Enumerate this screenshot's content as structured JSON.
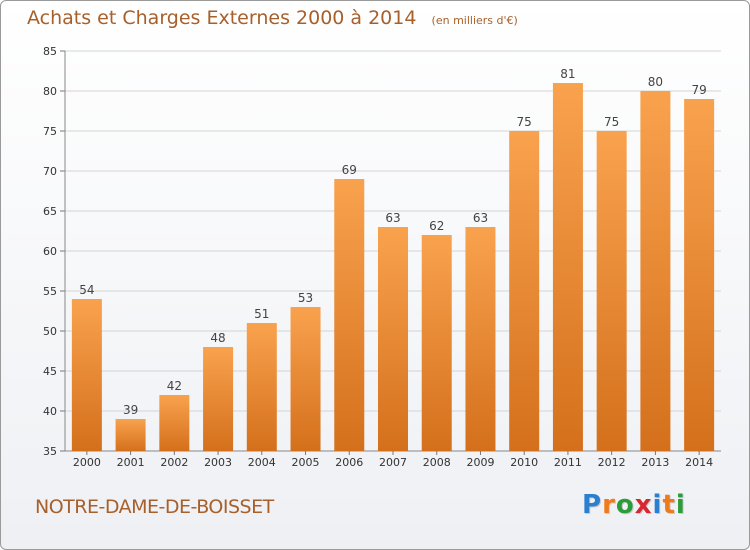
{
  "header": {
    "title": "Achats et Charges Externes 2000 à 2014",
    "subtitle": "(en milliers d'€)"
  },
  "footer": {
    "commune": "NOTRE-DAME-DE-BOISSET",
    "logo_text": "Proxiti",
    "logo_letters": [
      {
        "char": "P",
        "color": "#2a7fd0"
      },
      {
        "char": "r",
        "color": "#f07a1a"
      },
      {
        "char": "o",
        "color": "#2a9d3a"
      },
      {
        "char": "x",
        "color": "#d8272f"
      },
      {
        "char": "i",
        "color": "#2a7fd0"
      },
      {
        "char": "t",
        "color": "#f07a1a"
      },
      {
        "char": "i",
        "color": "#2a9d3a"
      }
    ]
  },
  "chart_data": {
    "type": "bar",
    "title": "Achats et Charges Externes 2000 à 2014",
    "subtitle": "(en milliers d'€)",
    "categories": [
      "2000",
      "2001",
      "2002",
      "2003",
      "2004",
      "2005",
      "2006",
      "2007",
      "2008",
      "2009",
      "2010",
      "2011",
      "2012",
      "2013",
      "2014"
    ],
    "values": [
      54,
      39,
      42,
      48,
      51,
      53,
      69,
      63,
      62,
      63,
      75,
      81,
      75,
      80,
      79
    ],
    "ylim": [
      35,
      85
    ],
    "yticks": [
      35,
      40,
      45,
      50,
      55,
      60,
      65,
      70,
      75,
      80,
      85
    ],
    "grid": true,
    "bar_color_top": "#f9a24e",
    "bar_color_bottom": "#d4701c"
  }
}
